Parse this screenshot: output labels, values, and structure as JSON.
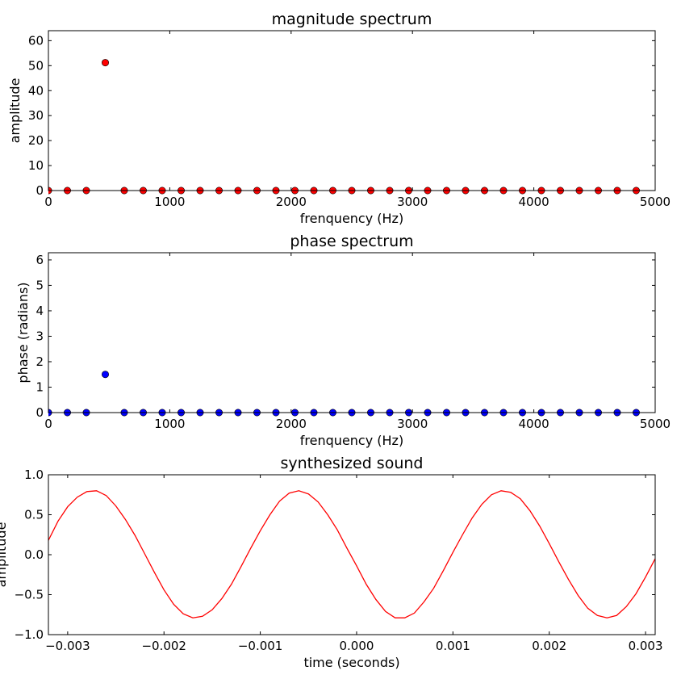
{
  "chart_data": [
    {
      "type": "scatter",
      "title": "magnitude spectrum",
      "xlabel": "frenquency (Hz)",
      "ylabel": "amplitude",
      "xlim": [
        0,
        5000
      ],
      "ylim": [
        0,
        64
      ],
      "xticks": [
        0,
        1000,
        2000,
        3000,
        4000,
        5000
      ],
      "yticks": [
        0,
        10,
        20,
        30,
        40,
        50,
        60
      ],
      "grid": false,
      "series": [
        {
          "color": "#ff0000",
          "x": [
            0,
            156.25,
            312.5,
            468.75,
            625,
            781.25,
            937.5,
            1093.75,
            1250,
            1406.25,
            1562.5,
            1718.75,
            1875,
            2031.25,
            2187.5,
            2343.75,
            2500,
            2656.25,
            2812.5,
            2968.75,
            3125,
            3281.25,
            3437.5,
            3593.75,
            3750,
            3906.25,
            4062.5,
            4218.75,
            4375,
            4531.25,
            4687.5,
            4843.75
          ],
          "y": [
            0,
            0,
            0,
            51.2,
            0,
            0,
            0,
            0,
            0,
            0,
            0,
            0,
            0,
            0,
            0,
            0,
            0,
            0,
            0,
            0,
            0,
            0,
            0,
            0,
            0,
            0,
            0,
            0,
            0,
            0,
            0,
            0
          ]
        }
      ]
    },
    {
      "type": "scatter",
      "title": "phase spectrum",
      "xlabel": "frenquency (Hz)",
      "ylabel": "phase (radians)",
      "xlim": [
        0,
        5000
      ],
      "ylim": [
        0,
        6.283
      ],
      "xticks": [
        0,
        1000,
        2000,
        3000,
        4000,
        5000
      ],
      "yticks": [
        0,
        1,
        2,
        3,
        4,
        5,
        6
      ],
      "grid": false,
      "series": [
        {
          "color": "#0000ff",
          "x": [
            0,
            156.25,
            312.5,
            468.75,
            625,
            781.25,
            937.5,
            1093.75,
            1250,
            1406.25,
            1562.5,
            1718.75,
            1875,
            2031.25,
            2187.5,
            2343.75,
            2500,
            2656.25,
            2812.5,
            2968.75,
            3125,
            3281.25,
            3437.5,
            3593.75,
            3750,
            3906.25,
            4062.5,
            4218.75,
            4375,
            4531.25,
            4687.5,
            4843.75
          ],
          "y": [
            0,
            0,
            0,
            1.5,
            0,
            0,
            0,
            0,
            0,
            0,
            0,
            0,
            0,
            0,
            0,
            0,
            0,
            0,
            0,
            0,
            0,
            0,
            0,
            0,
            0,
            0,
            0,
            0,
            0,
            0,
            0,
            0
          ]
        }
      ]
    },
    {
      "type": "line",
      "title": "synthesized sound",
      "xlabel": "time (seconds)",
      "ylabel": "amplitude",
      "xlim": [
        -0.0032,
        0.0031
      ],
      "ylim": [
        -1.0,
        1.0
      ],
      "xticks": [
        -0.003,
        -0.002,
        -0.001,
        0.0,
        0.001,
        0.002,
        0.003
      ],
      "xtick_labels": [
        "−0.003",
        "−0.002",
        "−0.001",
        "0.000",
        "0.001",
        "0.002",
        "0.003"
      ],
      "yticks": [
        -1.0,
        -0.5,
        0.0,
        0.5,
        1.0
      ],
      "ytick_labels": [
        "−1.0",
        "−0.5",
        "0.0",
        "0.5",
        "1.0"
      ],
      "grid": false,
      "series": [
        {
          "color": "#ff0000",
          "x": [
            -0.0032,
            -0.0031,
            -0.003,
            -0.0029,
            -0.0028,
            -0.0027,
            -0.0026,
            -0.0025,
            -0.0024,
            -0.0023,
            -0.0022,
            -0.0021,
            -0.002,
            -0.0019,
            -0.0018,
            -0.0017,
            -0.0016,
            -0.0015,
            -0.0014,
            -0.0013,
            -0.0012,
            -0.0011,
            -0.001,
            -0.0009,
            -0.0008,
            -0.0007,
            -0.0006,
            -0.0005,
            -0.0004,
            -0.0003,
            -0.0002,
            -0.0001,
            0.0,
            0.0001,
            0.0002,
            0.0003,
            0.0004,
            0.0005,
            0.0006,
            0.0007,
            0.0008,
            0.0009,
            0.001,
            0.0011,
            0.0012,
            0.0013,
            0.0014,
            0.0015,
            0.0016,
            0.0017,
            0.0018,
            0.0019,
            0.002,
            0.0021,
            0.0022,
            0.0023,
            0.0024,
            0.0025,
            0.0026,
            0.0027,
            0.0028,
            0.0029,
            0.003,
            0.0031
          ],
          "y": [
            0.18,
            0.42,
            0.6,
            0.72,
            0.79,
            0.8,
            0.74,
            0.61,
            0.44,
            0.24,
            0.01,
            -0.22,
            -0.44,
            -0.62,
            -0.74,
            -0.79,
            -0.77,
            -0.69,
            -0.55,
            -0.37,
            -0.15,
            0.08,
            0.3,
            0.5,
            0.67,
            0.77,
            0.8,
            0.76,
            0.66,
            0.5,
            0.31,
            0.08,
            -0.14,
            -0.37,
            -0.56,
            -0.71,
            -0.79,
            -0.79,
            -0.73,
            -0.59,
            -0.42,
            -0.2,
            0.03,
            0.25,
            0.46,
            0.63,
            0.75,
            0.8,
            0.78,
            0.7,
            0.55,
            0.36,
            0.14,
            -0.09,
            -0.31,
            -0.51,
            -0.67,
            -0.76,
            -0.79,
            -0.76,
            -0.65,
            -0.49,
            -0.28,
            -0.05
          ]
        }
      ]
    }
  ]
}
